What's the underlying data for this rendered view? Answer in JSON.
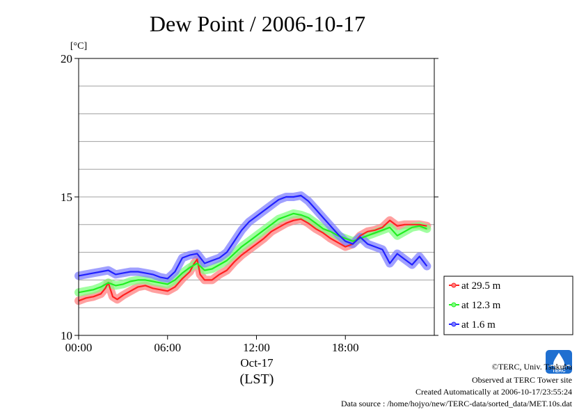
{
  "chart_data": {
    "type": "line",
    "title": "Dew Point / 2006-10-17",
    "unit_label": "[°C]",
    "ylim": [
      10,
      20
    ],
    "y_ticks": [
      {
        "value": 10,
        "label": "10"
      },
      {
        "value": 15,
        "label": "15"
      },
      {
        "value": 20,
        "label": "20"
      }
    ],
    "y_grid": [
      11,
      12,
      13,
      14,
      15,
      16,
      17,
      18,
      19
    ],
    "xlim_hours": [
      0,
      24
    ],
    "x_ticks": [
      {
        "hour": 0,
        "label": "00:00"
      },
      {
        "hour": 6,
        "label": "06:00"
      },
      {
        "hour": 12,
        "label": "12:00"
      },
      {
        "hour": 18,
        "label": "18:00"
      }
    ],
    "x_date_label": "Oct-17",
    "x_timezone_label": "(LST)",
    "grid": "horizontal",
    "legend_position": "right",
    "series": [
      {
        "name": "at 29.5 m",
        "color": "#ff2020",
        "band_color": "#ff8080",
        "points": [
          [
            0,
            11.25
          ],
          [
            0.5,
            11.35
          ],
          [
            1,
            11.4
          ],
          [
            1.5,
            11.5
          ],
          [
            1.8,
            11.7
          ],
          [
            2,
            11.9
          ],
          [
            2.3,
            11.4
          ],
          [
            2.6,
            11.3
          ],
          [
            3,
            11.45
          ],
          [
            3.5,
            11.6
          ],
          [
            4,
            11.75
          ],
          [
            4.5,
            11.8
          ],
          [
            5,
            11.7
          ],
          [
            5.5,
            11.65
          ],
          [
            6,
            11.6
          ],
          [
            6.5,
            11.75
          ],
          [
            7,
            12.05
          ],
          [
            7.5,
            12.3
          ],
          [
            7.8,
            12.6
          ],
          [
            8,
            12.75
          ],
          [
            8.2,
            12.2
          ],
          [
            8.5,
            12.0
          ],
          [
            9,
            12.0
          ],
          [
            9.5,
            12.2
          ],
          [
            10,
            12.35
          ],
          [
            10.5,
            12.65
          ],
          [
            11,
            12.9
          ],
          [
            11.5,
            13.1
          ],
          [
            12,
            13.3
          ],
          [
            12.5,
            13.5
          ],
          [
            13,
            13.75
          ],
          [
            13.5,
            13.9
          ],
          [
            14,
            14.05
          ],
          [
            14.5,
            14.15
          ],
          [
            15,
            14.2
          ],
          [
            15.5,
            14.05
          ],
          [
            16,
            13.85
          ],
          [
            16.5,
            13.7
          ],
          [
            17,
            13.5
          ],
          [
            17.5,
            13.35
          ],
          [
            18,
            13.2
          ],
          [
            18.5,
            13.3
          ],
          [
            19,
            13.6
          ],
          [
            19.5,
            13.75
          ],
          [
            20,
            13.8
          ],
          [
            20.5,
            13.9
          ],
          [
            21,
            14.15
          ],
          [
            21.5,
            13.95
          ],
          [
            22,
            14.0
          ],
          [
            22.5,
            14.0
          ],
          [
            23,
            14.0
          ],
          [
            23.5,
            13.95
          ]
        ]
      },
      {
        "name": "at 12.3 m",
        "color": "#20ee20",
        "band_color": "#80ff80",
        "points": [
          [
            0,
            11.55
          ],
          [
            0.5,
            11.6
          ],
          [
            1,
            11.65
          ],
          [
            1.5,
            11.75
          ],
          [
            2,
            11.9
          ],
          [
            2.5,
            11.8
          ],
          [
            3,
            11.85
          ],
          [
            3.5,
            11.95
          ],
          [
            4,
            12.0
          ],
          [
            4.5,
            12.0
          ],
          [
            5,
            11.95
          ],
          [
            5.5,
            11.9
          ],
          [
            6,
            11.85
          ],
          [
            6.5,
            12.0
          ],
          [
            7,
            12.25
          ],
          [
            7.5,
            12.45
          ],
          [
            8,
            12.6
          ],
          [
            8.5,
            12.35
          ],
          [
            9,
            12.4
          ],
          [
            9.5,
            12.55
          ],
          [
            10,
            12.7
          ],
          [
            10.5,
            12.95
          ],
          [
            11,
            13.2
          ],
          [
            11.5,
            13.4
          ],
          [
            12,
            13.6
          ],
          [
            12.5,
            13.8
          ],
          [
            13,
            14.0
          ],
          [
            13.5,
            14.2
          ],
          [
            14,
            14.3
          ],
          [
            14.5,
            14.4
          ],
          [
            15,
            14.35
          ],
          [
            15.5,
            14.25
          ],
          [
            16,
            14.05
          ],
          [
            16.5,
            13.85
          ],
          [
            17,
            13.75
          ],
          [
            17.5,
            13.6
          ],
          [
            18,
            13.5
          ],
          [
            18.5,
            13.4
          ],
          [
            19,
            13.5
          ],
          [
            19.5,
            13.6
          ],
          [
            20,
            13.7
          ],
          [
            20.5,
            13.8
          ],
          [
            21,
            13.9
          ],
          [
            21.5,
            13.6
          ],
          [
            22,
            13.75
          ],
          [
            22.5,
            13.9
          ],
          [
            23,
            13.95
          ],
          [
            23.5,
            13.85
          ]
        ]
      },
      {
        "name": "at 1.6 m",
        "color": "#2020ff",
        "band_color": "#8080ff",
        "points": [
          [
            0,
            12.15
          ],
          [
            0.5,
            12.2
          ],
          [
            1,
            12.25
          ],
          [
            1.5,
            12.3
          ],
          [
            2,
            12.35
          ],
          [
            2.5,
            12.2
          ],
          [
            3,
            12.25
          ],
          [
            3.5,
            12.3
          ],
          [
            4,
            12.3
          ],
          [
            4.5,
            12.25
          ],
          [
            5,
            12.2
          ],
          [
            5.5,
            12.1
          ],
          [
            6,
            12.05
          ],
          [
            6.5,
            12.3
          ],
          [
            7,
            12.8
          ],
          [
            7.5,
            12.9
          ],
          [
            8,
            12.95
          ],
          [
            8.5,
            12.6
          ],
          [
            9,
            12.7
          ],
          [
            9.5,
            12.8
          ],
          [
            10,
            13.0
          ],
          [
            10.5,
            13.4
          ],
          [
            11,
            13.8
          ],
          [
            11.5,
            14.1
          ],
          [
            12,
            14.3
          ],
          [
            12.5,
            14.5
          ],
          [
            13,
            14.7
          ],
          [
            13.5,
            14.9
          ],
          [
            14,
            15.0
          ],
          [
            14.5,
            15.0
          ],
          [
            15,
            15.05
          ],
          [
            15.5,
            14.85
          ],
          [
            16,
            14.55
          ],
          [
            16.5,
            14.25
          ],
          [
            17,
            13.95
          ],
          [
            17.5,
            13.65
          ],
          [
            18,
            13.4
          ],
          [
            18.5,
            13.3
          ],
          [
            19,
            13.55
          ],
          [
            19.5,
            13.3
          ],
          [
            20,
            13.2
          ],
          [
            20.5,
            13.1
          ],
          [
            21,
            12.6
          ],
          [
            21.5,
            12.95
          ],
          [
            22,
            12.75
          ],
          [
            22.5,
            12.55
          ],
          [
            23,
            12.85
          ],
          [
            23.5,
            12.5
          ]
        ]
      }
    ]
  },
  "credits": {
    "copyright": "©TERC, Univ. Tsukuba",
    "observed": "Observed at TERC Tower site",
    "created": "Created Automatically at 2006-10-17/23:55:24",
    "source": "Data source : /home/hojyo/new/TERC-data/sorted_data/MET.10s.dat",
    "logo_text": "TERC"
  }
}
